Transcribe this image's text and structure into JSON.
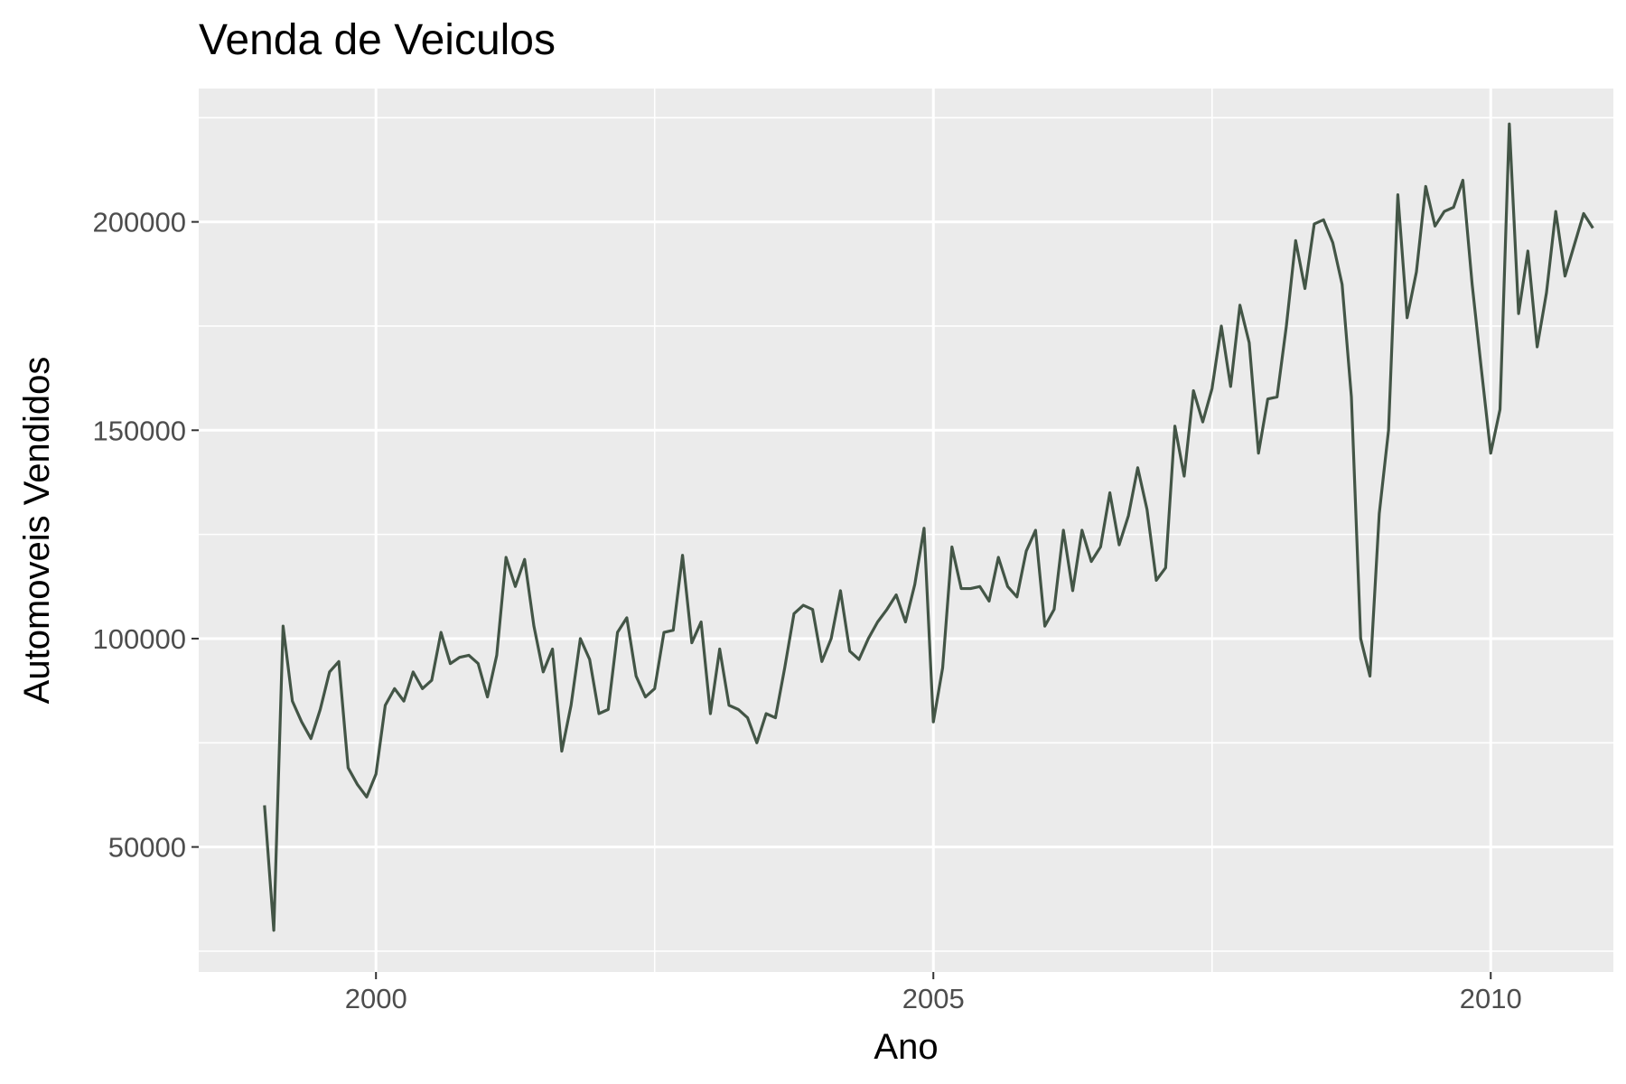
{
  "chart_data": {
    "type": "line",
    "title": "Venda de Veiculos",
    "xlabel": "Ano",
    "ylabel": "Automoveis Vendidos",
    "xlim": [
      1998.41,
      2011.1
    ],
    "ylim": [
      20000,
      232000
    ],
    "x_ticks": [
      2000,
      2005,
      2010
    ],
    "x_tick_labels": [
      "2000",
      "2005",
      "2010"
    ],
    "x_minor_ticks": [
      2002.5,
      2007.5
    ],
    "y_ticks": [
      50000,
      100000,
      150000,
      200000
    ],
    "y_tick_labels": [
      "50000",
      "100000",
      "150000",
      "200000"
    ],
    "y_minor_ticks": [
      25000,
      75000,
      125000,
      175000,
      225000
    ],
    "grid": true,
    "colors": {
      "line": "#435546",
      "panel": "#ebebeb",
      "grid": "#ffffff"
    },
    "x_start": 1999.0,
    "x_step_months": 1,
    "series": [
      {
        "values": [
          60000,
          30000,
          103000,
          85000,
          80000,
          76000,
          83000,
          92000,
          94500,
          69000,
          65000,
          62000,
          67500,
          84000,
          88000,
          85000,
          92000,
          88000,
          90000,
          101500,
          94000,
          95500,
          96000,
          94000,
          86000,
          96000,
          119500,
          112500,
          119000,
          103000,
          92000,
          97500,
          73000,
          84000,
          100000,
          95000,
          82000,
          83000,
          101500,
          105000,
          91000,
          86000,
          88000,
          101500,
          102000,
          120000,
          99000,
          104000,
          82000,
          97500,
          84000,
          83000,
          81000,
          75000,
          82000,
          81000,
          93000,
          106000,
          108000,
          107000,
          94500,
          100000,
          111500,
          97000,
          95000,
          100000,
          104000,
          107000,
          110500,
          104000,
          113000,
          126500,
          80000,
          93000,
          122000,
          112000,
          112000,
          112500,
          109000,
          119500,
          112500,
          110000,
          121000,
          126000,
          103000,
          107000,
          126000,
          111500,
          126000,
          118500,
          122000,
          135000,
          122500,
          129500,
          141000,
          131000,
          114000,
          117000,
          151000,
          139000,
          159500,
          152000,
          160000,
          175000,
          160500,
          180000,
          171000,
          144500,
          157500,
          158000,
          175000,
          195500,
          184000,
          199500,
          200500,
          195000,
          185000,
          158000,
          100000,
          91000,
          130000,
          150000,
          206500,
          177000,
          188000,
          208500,
          199000,
          202500,
          203500,
          210000,
          185000,
          164500,
          144500,
          155000,
          223500,
          178000,
          193000,
          170000,
          183000,
          202500,
          187000,
          194500,
          202000,
          198500
        ]
      }
    ]
  }
}
